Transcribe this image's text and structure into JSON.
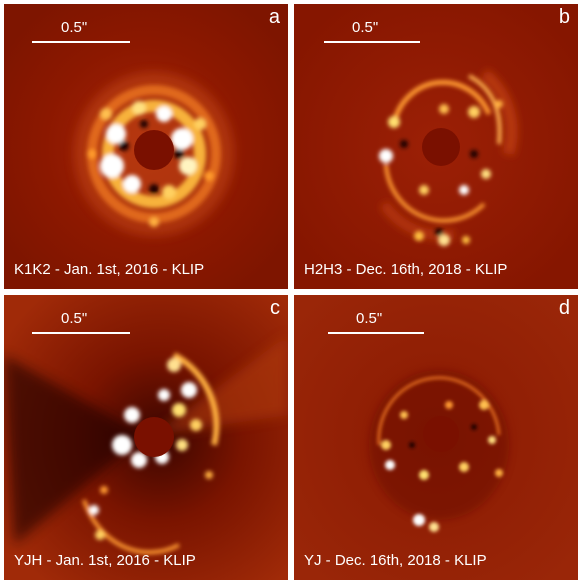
{
  "panels": [
    {
      "letter": "a",
      "scale": "0.5\"",
      "caption": "K1K2 - Jan. 1st, 2016 - KLIP"
    },
    {
      "letter": "b",
      "scale": "0.5\"",
      "caption": "H2H3 - Dec. 16th, 2018 - KLIP"
    },
    {
      "letter": "c",
      "scale": "0.5\"",
      "caption": "YJH - Jan. 1st, 2016 - KLIP"
    },
    {
      "letter": "d",
      "scale": "0.5\"",
      "caption": "YJ - Dec. 16th, 2018 - KLIP"
    }
  ],
  "colors": {
    "background": "#8b1800",
    "mask": "#7a1000",
    "bright": "#ffffff",
    "mid": "#ff9a2a",
    "dark": "#1e0200"
  }
}
